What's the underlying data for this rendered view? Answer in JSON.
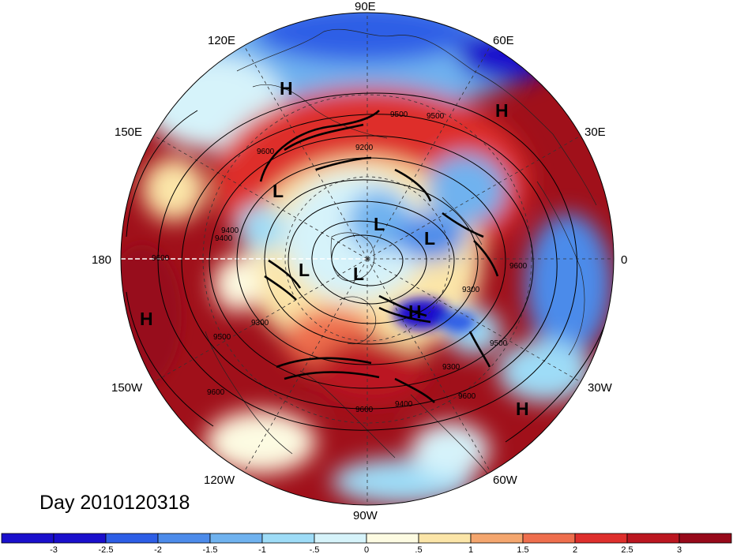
{
  "title": "Day 2010120318",
  "longitude_labels": {
    "north": "90E",
    "ne": "60E",
    "ene": "30E",
    "east": "0",
    "ese": "30W",
    "se": "60W",
    "south": "90W",
    "sw": "120W",
    "wsw": "150W",
    "west": "180",
    "wnw": "150E",
    "nw": "120E"
  },
  "pressure_systems": [
    "H",
    "H",
    "H",
    "H",
    "H",
    "L",
    "L",
    "L",
    "L",
    "L"
  ],
  "contour_labels": [
    "9500",
    "9500",
    "9200",
    "9400",
    "9600",
    "9300",
    "9600",
    "9600",
    "9400",
    "9300",
    "9600",
    "9500",
    "9600",
    "9400",
    "9300",
    "9500",
    "9600"
  ],
  "colorbar": {
    "colors": [
      "#1a0fcc",
      "#2d5ee6",
      "#4c8bea",
      "#6fb2ef",
      "#9edcf7",
      "#d6f3fa",
      "#fdfbe2",
      "#fbe5a8",
      "#f4a66e",
      "#ee6e4d",
      "#de2f2c",
      "#bb1620",
      "#97091a"
    ],
    "tick_labels": [
      "-3",
      "-2.5",
      "-2",
      "-1.5",
      "-1",
      "-.5",
      "0",
      ".5",
      "1",
      "1.5",
      "2",
      "2.5",
      "3"
    ]
  }
}
